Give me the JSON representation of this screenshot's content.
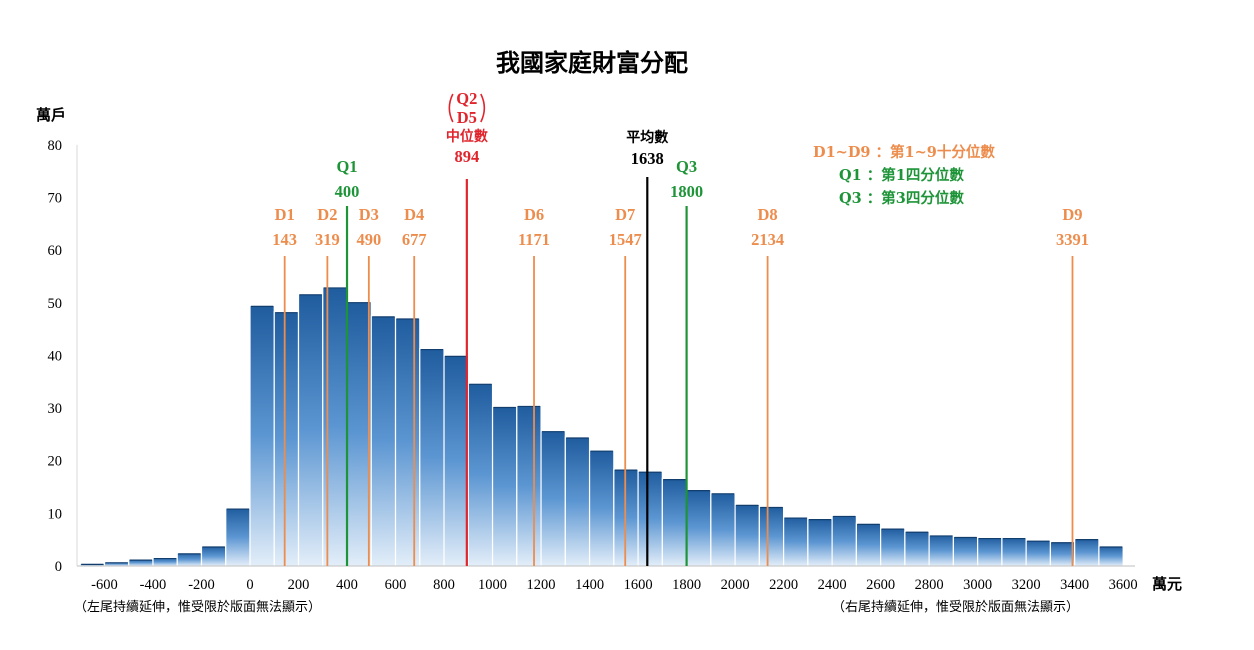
{
  "chart_data": {
    "type": "bar",
    "title": "我國家庭財富分配",
    "ylabel": "萬戶",
    "xlabel": "萬元",
    "ylim": [
      0,
      80
    ],
    "xlim": [
      -700,
      3600
    ],
    "bin_width": 100,
    "y_ticks": [
      "0",
      "10",
      "20",
      "30",
      "40",
      "50",
      "60",
      "70",
      "80"
    ],
    "x_ticks": [
      "-600",
      "-400",
      "-200",
      "0",
      "200",
      "400",
      "600",
      "800",
      "1000",
      "1200",
      "1400",
      "1600",
      "1800",
      "2000",
      "2200",
      "2400",
      "2600",
      "2800",
      "3000",
      "3200",
      "3400",
      "3600"
    ],
    "bins_start": [
      -700,
      -600,
      -500,
      -400,
      -300,
      -200,
      -100,
      0,
      100,
      200,
      300,
      400,
      500,
      600,
      700,
      800,
      900,
      1000,
      1100,
      1200,
      1300,
      1400,
      1500,
      1600,
      1700,
      1800,
      1900,
      2000,
      2100,
      2200,
      2300,
      2400,
      2500,
      2600,
      2700,
      2800,
      2900,
      3000,
      3100,
      3200,
      3300,
      3400,
      3500
    ],
    "values": [
      0.5,
      0.8,
      1.3,
      1.6,
      2.5,
      3.8,
      11,
      49.5,
      48.3,
      51.7,
      53,
      50.2,
      47.5,
      47.1,
      41.3,
      40,
      34.7,
      30.3,
      30.5,
      25.7,
      24.5,
      22,
      18.4,
      18,
      16.6,
      14.5,
      13.9,
      11.7,
      11.3,
      9.3,
      9,
      9.6,
      8.1,
      7.2,
      6.6,
      5.9,
      5.6,
      5.4,
      5.4,
      4.9,
      4.6,
      5.2,
      3.8
    ],
    "markers": [
      {
        "id": "d1",
        "lines": [
          "D1",
          "143"
        ],
        "value": 143,
        "color": "#ED8D4D"
      },
      {
        "id": "d2",
        "lines": [
          "D2",
          "319"
        ],
        "value": 319,
        "color": "#ED8D4D"
      },
      {
        "id": "q1",
        "lines": [
          "Q1",
          "400"
        ],
        "value": 400,
        "color": "#1E9438"
      },
      {
        "id": "d3",
        "lines": [
          "D3",
          "490"
        ],
        "value": 490,
        "color": "#ED8D4D"
      },
      {
        "id": "d4",
        "lines": [
          "D4",
          "677"
        ],
        "value": 677,
        "color": "#ED8D4D"
      },
      {
        "id": "median",
        "lines": [
          "Q2",
          "D5",
          "中位數",
          "894"
        ],
        "value": 894,
        "color": "#E0252D"
      },
      {
        "id": "d6",
        "lines": [
          "D6",
          "1171"
        ],
        "value": 1171,
        "color": "#ED8D4D"
      },
      {
        "id": "d7",
        "lines": [
          "D7",
          "1547"
        ],
        "value": 1547,
        "color": "#ED8D4D"
      },
      {
        "id": "mean",
        "lines": [
          "平均數",
          "1638"
        ],
        "value": 1638,
        "color": "#000000"
      },
      {
        "id": "q3",
        "lines": [
          "Q3",
          "1800"
        ],
        "value": 1800,
        "color": "#1E9438"
      },
      {
        "id": "d8",
        "lines": [
          "D8",
          "2134"
        ],
        "value": 2134,
        "color": "#ED8D4D"
      },
      {
        "id": "d9",
        "lines": [
          "D9",
          "3391"
        ],
        "value": 3391,
        "color": "#ED8D4D"
      }
    ],
    "legend": [
      {
        "text": "D1~D9 ：第1~9十分位數",
        "color": "#ED8D4D"
      },
      {
        "text": "Q1 ：第1四分位數",
        "color": "#1E9438"
      },
      {
        "text": "Q3 ：第3四分位數",
        "color": "#1E9438"
      }
    ],
    "notes": {
      "left": "（左尾持續延伸，惟受限於版面無法顯示）",
      "right": "（右尾持續延伸，惟受限於版面無法顯示）"
    },
    "grid": false,
    "legend_position": "top-right"
  }
}
